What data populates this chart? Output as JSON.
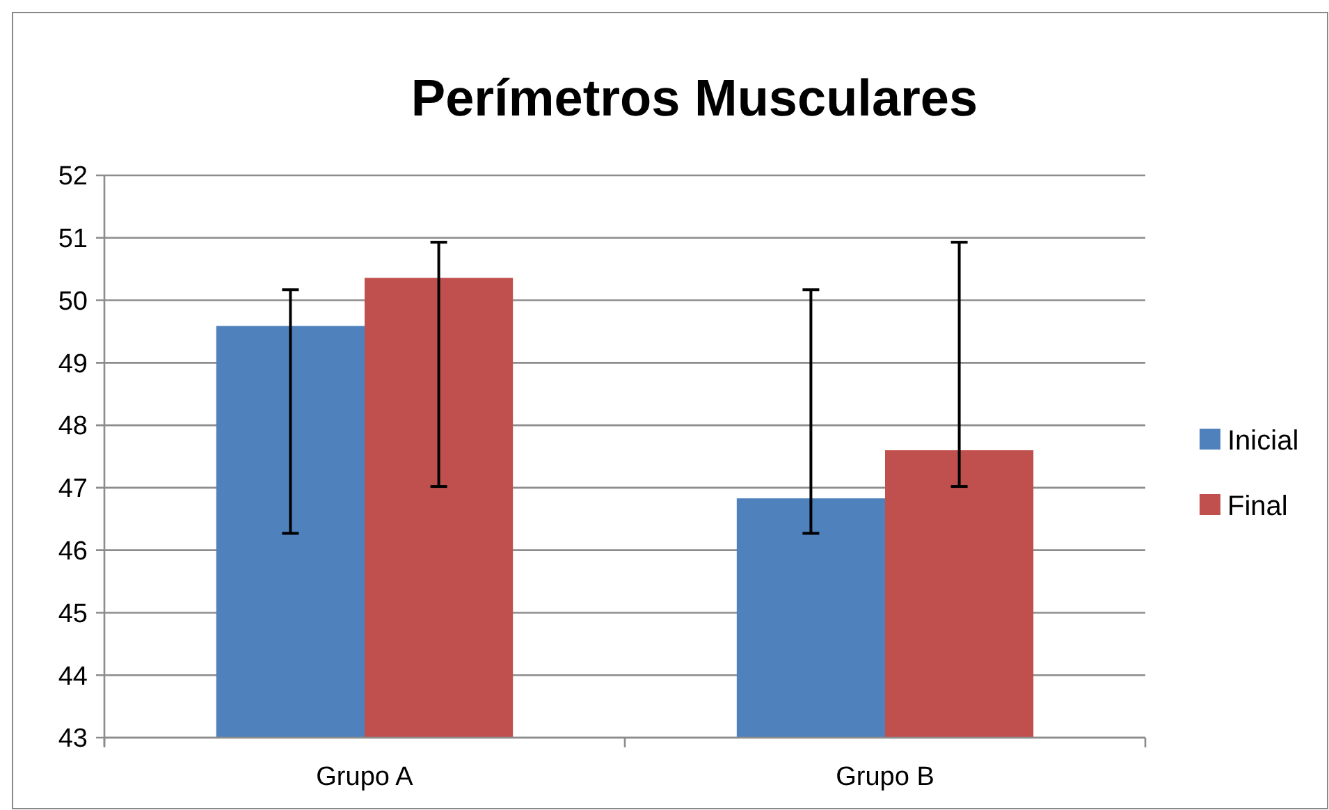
{
  "chart_data": {
    "type": "bar",
    "title": "Perímetros Musculares",
    "categories": [
      "Grupo A",
      "Grupo B"
    ],
    "series": [
      {
        "name": "Inicial",
        "color": "#4f81bd",
        "values": [
          49.59,
          46.83
        ],
        "errors": [
          [
            46.27,
            50.17
          ],
          [
            46.27,
            50.17
          ]
        ]
      },
      {
        "name": "Final",
        "color": "#c0504d",
        "values": [
          50.36,
          47.6
        ],
        "errors": [
          [
            47.02,
            50.93
          ],
          [
            47.02,
            50.93
          ]
        ]
      }
    ],
    "ylim": [
      43,
      52
    ],
    "yticks": [
      43,
      44,
      45,
      46,
      47,
      48,
      49,
      50,
      51,
      52
    ],
    "grid": "y",
    "legend": "right"
  }
}
